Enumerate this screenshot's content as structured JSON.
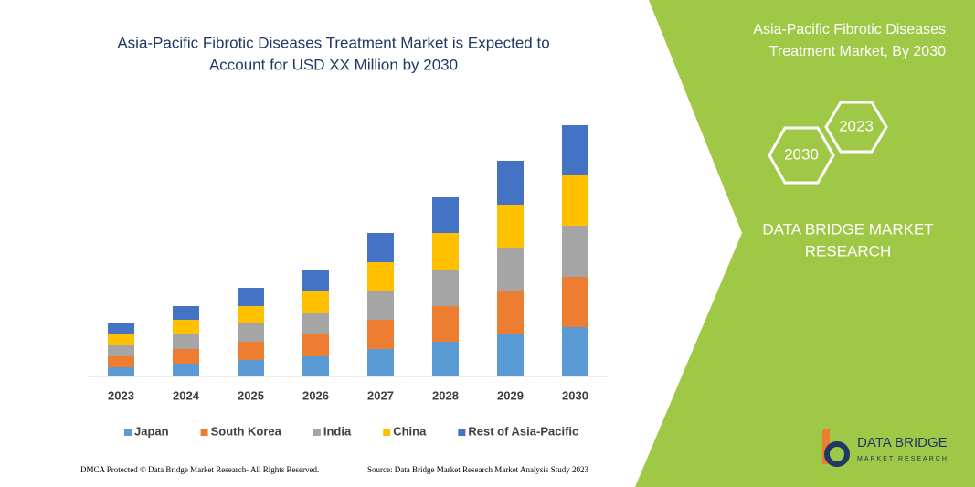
{
  "chart_data": {
    "type": "stacked_bar",
    "title": [
      "Asia-Pacific Fibrotic Diseases Treatment Market is Expected to",
      "Account for USD XX Million by 2030"
    ],
    "categories": [
      "2023",
      "2024",
      "2025",
      "2026",
      "2027",
      "2028",
      "2029",
      "2030"
    ],
    "series": [
      {
        "name": "Japan",
        "color": "#5b9bd5",
        "values": [
          10,
          14,
          18,
          22,
          30,
          38,
          46,
          54
        ]
      },
      {
        "name": "South Korea",
        "color": "#ed7d31",
        "values": [
          12,
          16,
          20,
          24,
          32,
          39,
          47,
          55
        ]
      },
      {
        "name": "India",
        "color": "#a5a5a5",
        "values": [
          12,
          16,
          20,
          23,
          31,
          40,
          48,
          56
        ]
      },
      {
        "name": "China",
        "color": "#ffc000",
        "values": [
          12,
          16,
          19,
          24,
          32,
          40,
          47,
          55
        ]
      },
      {
        "name": "Rest of Asia-Pacific",
        "color": "#4472c4",
        "values": [
          12,
          15,
          20,
          24,
          32,
          39,
          48,
          55
        ]
      }
    ],
    "ylim": [
      0,
      290
    ]
  },
  "side_panel": {
    "title": [
      "Asia-Pacific Fibrotic Diseases",
      "Treatment Market, By 2030"
    ],
    "hexagons": [
      "2030",
      "2023"
    ],
    "brand": [
      "DATA BRIDGE MARKET",
      "RESEARCH"
    ],
    "logo": [
      "DATA BRIDGE",
      "MARKET RESEARCH"
    ]
  },
  "footer": {
    "left": "DMCA Protected © Data Bridge Market Research- All Rights Reserved.",
    "right": "Source: Data Bridge Market Research Market Analysis Study 2023"
  }
}
